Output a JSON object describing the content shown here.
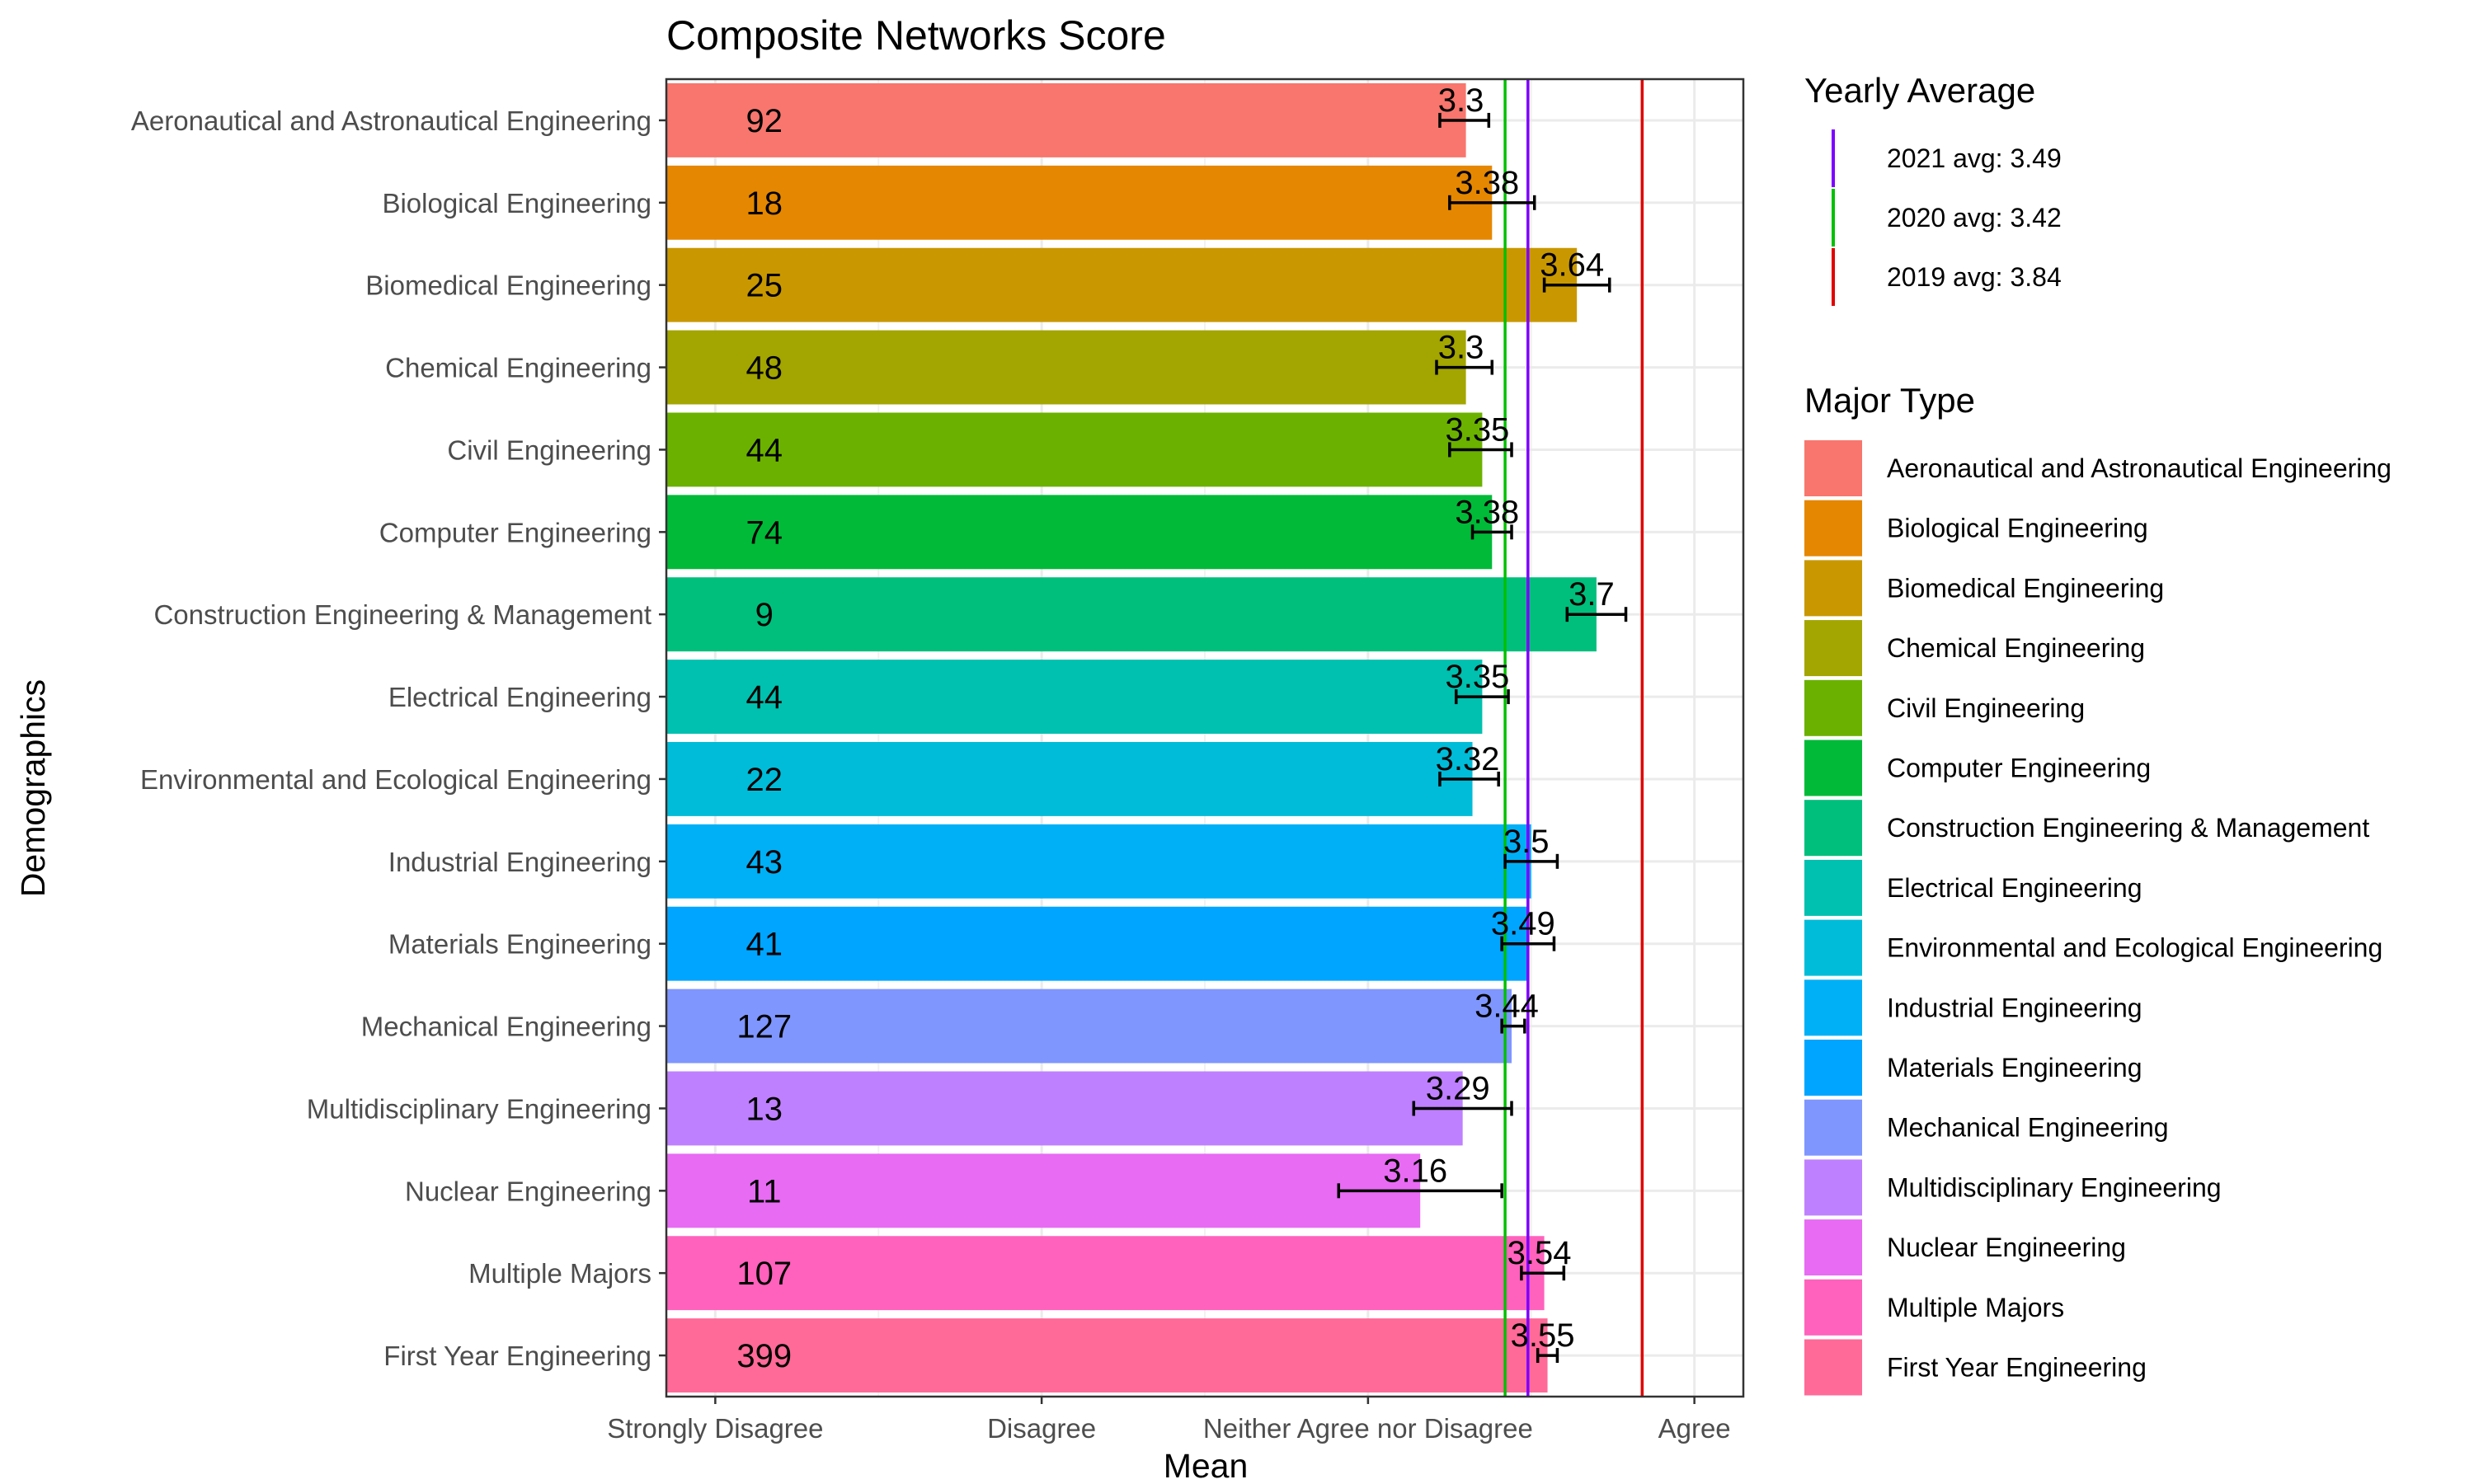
{
  "chart_data": {
    "type": "bar",
    "orientation": "horizontal",
    "title": "Composite Networks Score",
    "xlabel": "Mean",
    "ylabel": "Demographics",
    "xlim": [
      1,
      4
    ],
    "x_ticks": [
      {
        "value": 1,
        "label": "Strongly Disagree"
      },
      {
        "value": 2,
        "label": "Disagree"
      },
      {
        "value": 3,
        "label": "Neither Agree nor Disagree"
      },
      {
        "value": 4,
        "label": "Agree"
      }
    ],
    "grid": true,
    "categories": [
      "Aeronautical and Astronautical Engineering",
      "Biological Engineering",
      "Biomedical Engineering",
      "Chemical Engineering",
      "Civil Engineering",
      "Computer Engineering",
      "Construction Engineering & Management",
      "Electrical Engineering",
      "Environmental and Ecological Engineering",
      "Industrial Engineering",
      "Materials Engineering",
      "Mechanical Engineering",
      "Multidisciplinary Engineering",
      "Nuclear Engineering",
      "Multiple Majors",
      "First Year Engineering"
    ],
    "values": [
      3.3,
      3.38,
      3.64,
      3.3,
      3.35,
      3.38,
      3.7,
      3.35,
      3.32,
      3.5,
      3.49,
      3.44,
      3.29,
      3.16,
      3.54,
      3.55
    ],
    "value_labels": [
      "3.3",
      "3.38",
      "3.64",
      "3.3",
      "3.35",
      "3.38",
      "3.7",
      "3.35",
      "3.32",
      "3.5",
      "3.49",
      "3.44",
      "3.29",
      "3.16",
      "3.54",
      "3.55"
    ],
    "counts": [
      "92",
      "18",
      "25",
      "48",
      "44",
      "74",
      "9",
      "44",
      "22",
      "43",
      "41",
      "127",
      "13",
      "11",
      "107",
      "399"
    ],
    "error_low": [
      3.22,
      3.25,
      3.54,
      3.21,
      3.25,
      3.32,
      3.61,
      3.27,
      3.22,
      3.42,
      3.41,
      3.41,
      3.14,
      2.91,
      3.47,
      3.52
    ],
    "error_high": [
      3.37,
      3.51,
      3.74,
      3.38,
      3.44,
      3.44,
      3.79,
      3.43,
      3.4,
      3.58,
      3.57,
      3.48,
      3.44,
      3.41,
      3.6,
      3.58
    ],
    "colors": [
      "#F8766D",
      "#E58700",
      "#C99800",
      "#A3A500",
      "#6BB100",
      "#00BA38",
      "#00BF7D",
      "#00C0AF",
      "#00BCD8",
      "#00B0F6",
      "#00A5FF",
      "#7F96FF",
      "#BF80FF",
      "#E76BF3",
      "#FF62BC",
      "#FF6A98"
    ],
    "reference_lines": [
      {
        "name": "2021 avg: 3.49",
        "value": 3.49,
        "color": "#7F00FF"
      },
      {
        "name": "2020 avg: 3.42",
        "value": 3.42,
        "color": "#00C000"
      },
      {
        "name": "2019 avg: 3.84",
        "value": 3.84,
        "color": "#E00000"
      }
    ],
    "legend_placement": "right",
    "legend_lines_title": "Yearly Average",
    "legend_fill_title": "Major Type"
  }
}
